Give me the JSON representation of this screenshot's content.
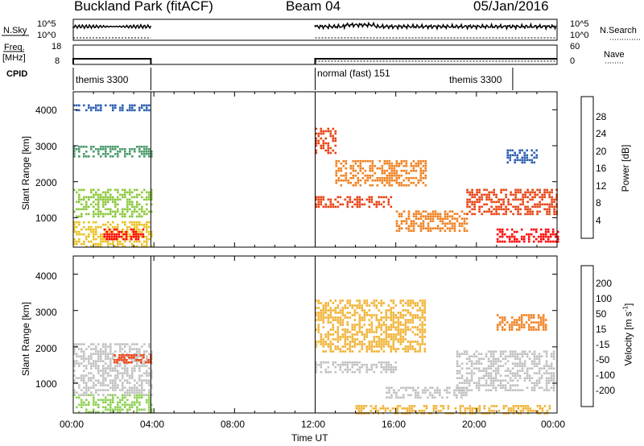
{
  "header": {
    "station": "Buckland Park (fitACF)",
    "beam": "Beam 04",
    "date": "05/Jan/2016"
  },
  "panels": {
    "nsky_label": "N.Sky",
    "nsky_ticks": [
      "10^5",
      "10^0"
    ],
    "nsearch_label": "N.Search",
    "nsearch_ticks": [
      "10^5",
      "10^0"
    ],
    "freq_label": "Freq.",
    "freq_unit": "[MHz]",
    "freq_ticks": [
      "18",
      "8"
    ],
    "nave_label": "Nave",
    "nave_ticks": [
      "60",
      "0"
    ],
    "cpid_label": "CPID",
    "cpid_entries": [
      {
        "label": "themis 3300",
        "start": "00:00",
        "end": "03:50"
      },
      {
        "label": "normal (fast) 151",
        "start": "12:00",
        "end": "21:50"
      },
      {
        "label": "themis 3300",
        "start": "21:50",
        "end": "24:00"
      }
    ]
  },
  "axes": {
    "ylabel": "Slant Range [km]",
    "y_ticks": [
      "1000",
      "2000",
      "3000",
      "4000"
    ],
    "ylim_km": [
      180,
      4500
    ],
    "xlabel": "Time UT",
    "x_ticks": [
      "00:00",
      "04:00",
      "08:00",
      "12:00",
      "16:00",
      "20:00",
      "00:00"
    ],
    "xlim_hours": [
      0,
      24
    ]
  },
  "colorbars": {
    "power": {
      "label": "Power [dB]",
      "ticks": [
        "4",
        "8",
        "12",
        "16",
        "20",
        "24",
        "28"
      ],
      "colors": [
        "#1a1aff",
        "#2c5fb0",
        "#4a9a6a",
        "#8cc83c",
        "#e8c020",
        "#f08020",
        "#e84010",
        "#ff0000"
      ]
    },
    "velocity": {
      "label": "Velocity [m s",
      "label_sup": "-1",
      "label_close": "]",
      "ticks": [
        "200",
        "100",
        "50",
        "15",
        "-15",
        "-50",
        "-100",
        "-200"
      ],
      "colors": [
        "#2020b0",
        "#2e6ec0",
        "#3aa860",
        "#8cd050",
        "#c0c0c0",
        "#f0b030",
        "#f08020",
        "#f04010",
        "#ff0000"
      ]
    }
  },
  "chart_data": {
    "type": "heatmap",
    "title": "Buckland Park (fitACF)",
    "xlabel": "Time UT",
    "ylabel": "Slant Range [km]",
    "x_range_hours": [
      0,
      24
    ],
    "y_range_km": [
      180,
      4500
    ],
    "data_gap_hours": [
      3.85,
      12.0
    ],
    "power_dB_regions": [
      {
        "t0": 0.0,
        "t1": 3.85,
        "r0": 1000,
        "r1": 1800,
        "value": 14
      },
      {
        "t0": 0.0,
        "t1": 3.85,
        "r0": 200,
        "r1": 900,
        "value": 16
      },
      {
        "t0": 1.5,
        "t1": 3.5,
        "r0": 400,
        "r1": 700,
        "value": 28
      },
      {
        "t0": 0.0,
        "t1": 3.85,
        "r0": 2700,
        "r1": 3000,
        "value": 8
      },
      {
        "t0": 0.0,
        "t1": 3.85,
        "r0": 4000,
        "r1": 4150,
        "value": 6
      },
      {
        "t0": 12.0,
        "t1": 15.8,
        "r0": 1300,
        "r1": 1600,
        "value": 26
      },
      {
        "t0": 12.0,
        "t1": 13.0,
        "r0": 2800,
        "r1": 3500,
        "value": 24
      },
      {
        "t0": 13.0,
        "t1": 17.5,
        "r0": 1900,
        "r1": 2600,
        "value": 20
      },
      {
        "t0": 16.0,
        "t1": 19.5,
        "r0": 600,
        "r1": 1200,
        "value": 22
      },
      {
        "t0": 19.5,
        "t1": 24.0,
        "r0": 1100,
        "r1": 1800,
        "value": 24
      },
      {
        "t0": 21.0,
        "t1": 24.0,
        "r0": 300,
        "r1": 700,
        "value": 28
      },
      {
        "t0": 21.5,
        "t1": 23.0,
        "r0": 2500,
        "r1": 2900,
        "value": 6
      }
    ],
    "velocity_ms_regions": [
      {
        "t0": 0.0,
        "t1": 3.85,
        "r0": 200,
        "r1": 700,
        "value": 30
      },
      {
        "t0": 0.0,
        "t1": 3.85,
        "r0": 700,
        "r1": 2100,
        "value": 0
      },
      {
        "t0": 2.0,
        "t1": 3.8,
        "r0": 1550,
        "r1": 1800,
        "value": -200
      },
      {
        "t0": 12.0,
        "t1": 16.0,
        "r0": 1300,
        "r1": 1600,
        "value": 0
      },
      {
        "t0": 12.0,
        "t1": 17.5,
        "r0": 1900,
        "r1": 3300,
        "value": -50
      },
      {
        "t0": 14.0,
        "t1": 23.8,
        "r0": 200,
        "r1": 400,
        "value": -50
      },
      {
        "t0": 15.5,
        "t1": 19.5,
        "r0": 600,
        "r1": 900,
        "value": 0
      },
      {
        "t0": 19.0,
        "t1": 23.8,
        "r0": 800,
        "r1": 1900,
        "value": 0
      },
      {
        "t0": 21.0,
        "t1": 23.5,
        "r0": 2500,
        "r1": 2900,
        "value": -100
      }
    ]
  }
}
